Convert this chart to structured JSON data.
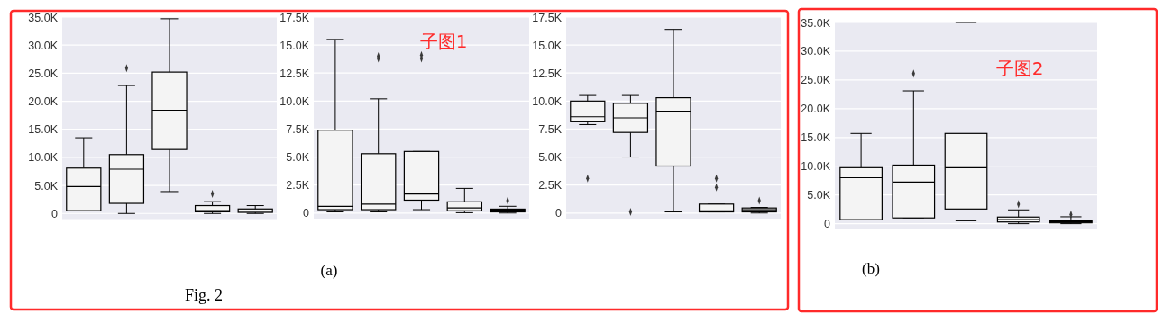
{
  "chart_data": [
    {
      "type": "box",
      "categories": [
        null,
        null,
        null,
        null,
        null
      ],
      "ylim": [
        -1000,
        35000
      ],
      "yticks": [
        {
          "value": 0,
          "label": "0"
        },
        {
          "value": 5000,
          "label": "5.0K"
        },
        {
          "value": 10000,
          "label": "10.0K"
        },
        {
          "value": 15000,
          "label": "15.0K"
        },
        {
          "value": 20000,
          "label": "20.0K"
        },
        {
          "value": 25000,
          "label": "25.0K"
        },
        {
          "value": 30000,
          "label": "30.0K"
        },
        {
          "value": 35000,
          "label": "35.0K"
        }
      ],
      "grid": "y",
      "tick_labels": "y",
      "annotations": [
        "Fig. 2"
      ],
      "boxes": [
        {
          "low": 500,
          "q1": 500,
          "median": 4800,
          "q3": 8100,
          "high": 13500
        },
        {
          "low": 0,
          "q1": 1800,
          "median": 7900,
          "q3": 10500,
          "high": 22800,
          "outliers": [
            25900
          ]
        },
        {
          "low": 3900,
          "q1": 11400,
          "median": 18400,
          "q3": 25200,
          "high": 34700
        },
        {
          "low": 0,
          "q1": 300,
          "median": 500,
          "q3": 1400,
          "high": 2100,
          "outliers": [
            3500
          ]
        },
        {
          "low": 0,
          "q1": 200,
          "median": 400,
          "q3": 800,
          "high": 1400
        }
      ]
    },
    {
      "type": "box",
      "categories": [
        null,
        null,
        null,
        null,
        null
      ],
      "ylim": [
        -500,
        17500
      ],
      "yticks": [
        {
          "value": 0,
          "label": "0"
        },
        {
          "value": 2500,
          "label": "2.5K"
        },
        {
          "value": 5000,
          "label": "5.0K"
        },
        {
          "value": 7500,
          "label": "7.5K"
        },
        {
          "value": 10000,
          "label": "10.0K"
        },
        {
          "value": 12500,
          "label": "12.5K"
        },
        {
          "value": 15000,
          "label": "15.0K"
        },
        {
          "value": 17500,
          "label": "17.5K"
        }
      ],
      "grid": "y",
      "tick_labels": "y",
      "annotations": [
        "子图1",
        "(a)"
      ],
      "boxes": [
        {
          "low": 100,
          "q1": 300,
          "median": 600,
          "q3": 7400,
          "high": 15500
        },
        {
          "low": 100,
          "q1": 300,
          "median": 800,
          "q3": 5300,
          "high": 10200,
          "outliers": [
            14000,
            13800
          ]
        },
        {
          "low": 300,
          "q1": 1150,
          "median": 1700,
          "q3": 5500,
          "high": 5500,
          "outliers": [
            14100,
            13800
          ]
        },
        {
          "low": 30,
          "q1": 200,
          "median": 450,
          "q3": 1000,
          "high": 2200
        },
        {
          "low": 0,
          "q1": 100,
          "median": 250,
          "q3": 350,
          "high": 600,
          "outliers": [
            1100
          ]
        }
      ]
    },
    {
      "type": "box",
      "categories": [
        null,
        null,
        null,
        null,
        null
      ],
      "ylim": [
        -500,
        17500
      ],
      "yticks": [
        {
          "value": 0,
          "label": "0"
        },
        {
          "value": 2500,
          "label": "2.5K"
        },
        {
          "value": 5000,
          "label": "5.0K"
        },
        {
          "value": 7500,
          "label": "7.5K"
        },
        {
          "value": 10000,
          "label": "10.0K"
        },
        {
          "value": 12500,
          "label": "12.5K"
        },
        {
          "value": 15000,
          "label": "15.0K"
        },
        {
          "value": 17500,
          "label": "17.5K"
        }
      ],
      "grid": "y",
      "tick_labels": "y",
      "boxes": [
        {
          "low": 7900,
          "q1": 8150,
          "median": 8600,
          "q3": 10000,
          "high": 10500,
          "outliers": [
            3100
          ]
        },
        {
          "low": 5000,
          "q1": 7200,
          "median": 8500,
          "q3": 9800,
          "high": 10500,
          "outliers": [
            100
          ]
        },
        {
          "low": 100,
          "q1": 4200,
          "median": 9100,
          "q3": 10300,
          "high": 16400
        },
        {
          "low": 100,
          "q1": 100,
          "median": 200,
          "q3": 800,
          "high": 800,
          "outliers": [
            3100,
            2300
          ]
        },
        {
          "low": 0,
          "q1": 100,
          "median": 300,
          "q3": 450,
          "high": 500,
          "outliers": [
            1100
          ]
        }
      ]
    },
    {
      "type": "box",
      "categories": [
        null,
        null,
        null,
        null,
        null
      ],
      "ylim": [
        -1000,
        35000
      ],
      "yticks": [
        {
          "value": 0,
          "label": "0"
        },
        {
          "value": 5000,
          "label": "5.0K"
        },
        {
          "value": 10000,
          "label": "10.0K"
        },
        {
          "value": 15000,
          "label": "15.0K"
        },
        {
          "value": 20000,
          "label": "20.0K"
        },
        {
          "value": 25000,
          "label": "25.0K"
        },
        {
          "value": 30000,
          "label": "30.0K"
        },
        {
          "value": 35000,
          "label": "35.0K"
        }
      ],
      "grid": "y",
      "tick_labels": "y",
      "annotations": [
        "子图2",
        "(b)"
      ],
      "boxes": [
        {
          "low": 700,
          "q1": 700,
          "median": 8000,
          "q3": 9750,
          "high": 15700
        },
        {
          "low": 1000,
          "q1": 1000,
          "median": 7250,
          "q3": 10200,
          "high": 23100,
          "outliers": [
            26100
          ]
        },
        {
          "low": 500,
          "q1": 2550,
          "median": 9750,
          "q3": 15700,
          "high": 35000
        },
        {
          "low": 0,
          "q1": 300,
          "median": 700,
          "q3": 1150,
          "high": 2400,
          "outliers": [
            3400
          ]
        },
        {
          "low": 0,
          "q1": 150,
          "median": 300,
          "q3": 500,
          "high": 1200,
          "outliers": [
            1600
          ]
        }
      ]
    }
  ]
}
